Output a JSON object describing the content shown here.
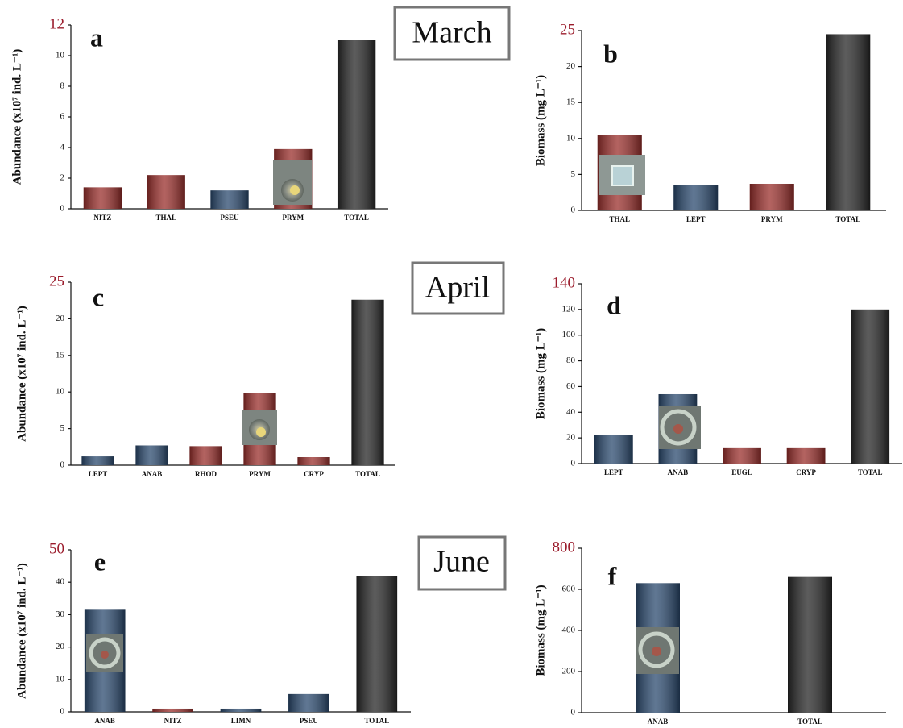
{
  "chart_data": [
    {
      "type": "bar",
      "panel": "a",
      "annotation": "March",
      "y_label": "Abundance (x10⁷ ind. L⁻¹)",
      "categories": [
        "NITZ",
        "THAL",
        "PSEU",
        "PRYM",
        "TOTAL"
      ],
      "values": [
        1.4,
        2.2,
        1.2,
        3.9,
        11.0
      ],
      "colors": [
        "#9a2f2c",
        "#9a2f2c",
        "#2b4a6f",
        "#9a2f2c",
        "#262626"
      ],
      "ylim": [
        0,
        12
      ],
      "yticks": [
        0,
        2,
        4,
        6,
        8,
        10,
        12
      ]
    },
    {
      "type": "bar",
      "panel": "b",
      "y_label": "Biomass (mg L⁻¹)",
      "categories": [
        "THAL",
        "LEPT",
        "PRYM",
        "TOTAL"
      ],
      "values": [
        10.5,
        3.5,
        3.7,
        24.5
      ],
      "colors": [
        "#9a2f2c",
        "#2b4a6f",
        "#9a2f2c",
        "#262626"
      ],
      "ylim": [
        0,
        25
      ],
      "yticks": [
        0,
        5,
        10,
        15,
        20,
        25
      ]
    },
    {
      "type": "bar",
      "panel": "c",
      "annotation": "April",
      "y_label": "Abundance (x10⁷ ind. L⁻¹)",
      "categories": [
        "LEPT",
        "ANAB",
        "RHOD",
        "PRYM",
        "CRYP",
        "TOTAL"
      ],
      "values": [
        1.2,
        2.7,
        2.6,
        9.9,
        1.1,
        22.6
      ],
      "colors": [
        "#2b4a6f",
        "#2b4a6f",
        "#9a2f2c",
        "#9a2f2c",
        "#9a2f2c",
        "#262626"
      ],
      "ylim": [
        0,
        25
      ],
      "yticks": [
        0,
        5,
        10,
        15,
        20,
        25
      ]
    },
    {
      "type": "bar",
      "panel": "d",
      "y_label": "Biomass (mg L⁻¹)",
      "categories": [
        "LEPT",
        "ANAB",
        "EUGL",
        "CRYP",
        "TOTAL"
      ],
      "values": [
        22,
        54,
        12,
        12,
        120
      ],
      "colors": [
        "#2b4a6f",
        "#2b4a6f",
        "#9a2f2c",
        "#9a2f2c",
        "#262626"
      ],
      "ylim": [
        0,
        140
      ],
      "yticks": [
        0,
        20,
        40,
        60,
        80,
        100,
        120,
        140
      ]
    },
    {
      "type": "bar",
      "panel": "e",
      "annotation": "June",
      "y_label": "Abundance (x10⁷ ind. L⁻¹)",
      "categories": [
        "ANAB",
        "NITZ",
        "LIMN",
        "PSEU",
        "TOTAL"
      ],
      "values": [
        31.5,
        1,
        1,
        5.5,
        42
      ],
      "colors": [
        "#2b4a6f",
        "#9a2f2c",
        "#2b4a6f",
        "#2b4a6f",
        "#262626"
      ],
      "ylim": [
        0,
        50
      ],
      "yticks": [
        0,
        10,
        20,
        30,
        40,
        50
      ]
    },
    {
      "type": "bar",
      "panel": "f",
      "y_label": "Biomass (mg L⁻¹)",
      "categories": [
        "ANAB",
        "TOTAL"
      ],
      "values": [
        630,
        660
      ],
      "colors": [
        "#2b4a6f",
        "#262626"
      ],
      "ylim": [
        0,
        800
      ],
      "yticks": [
        0,
        200,
        400,
        600,
        800
      ]
    }
  ]
}
